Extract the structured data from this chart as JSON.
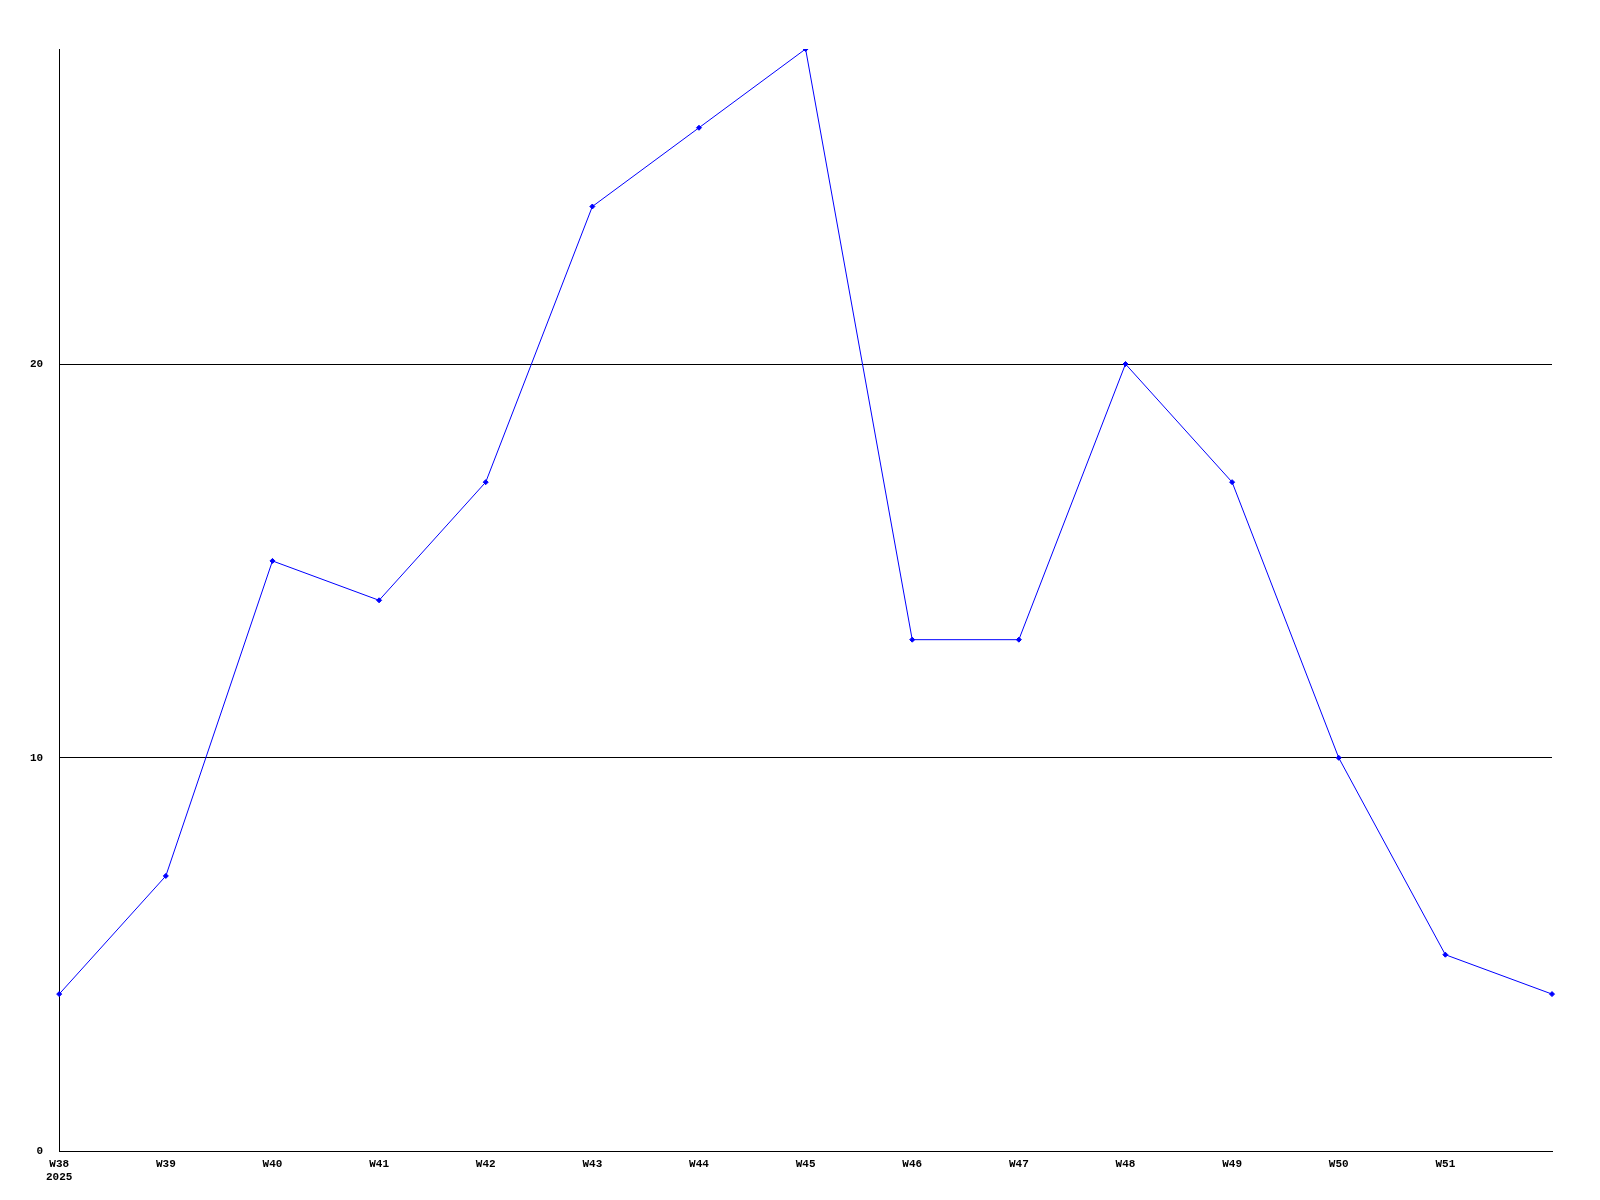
{
  "chart_data": {
    "type": "line",
    "categories": [
      "W38\n2025",
      "W39",
      "W40",
      "W41",
      "W42",
      "W43",
      "W44",
      "W45",
      "W46",
      "W47",
      "W48",
      "W49",
      "W50",
      "W51",
      null
    ],
    "series": [
      {
        "color": "#0000ff",
        "values": [
          4,
          7,
          15,
          14,
          17,
          24,
          26,
          28,
          13,
          13,
          20,
          17,
          10,
          5,
          4
        ]
      }
    ],
    "ylim": [
      0,
      28
    ],
    "yticks": [
      0,
      10,
      20
    ],
    "grid": "y",
    "legend": false,
    "marker": "diamond",
    "line_style": "solid"
  }
}
